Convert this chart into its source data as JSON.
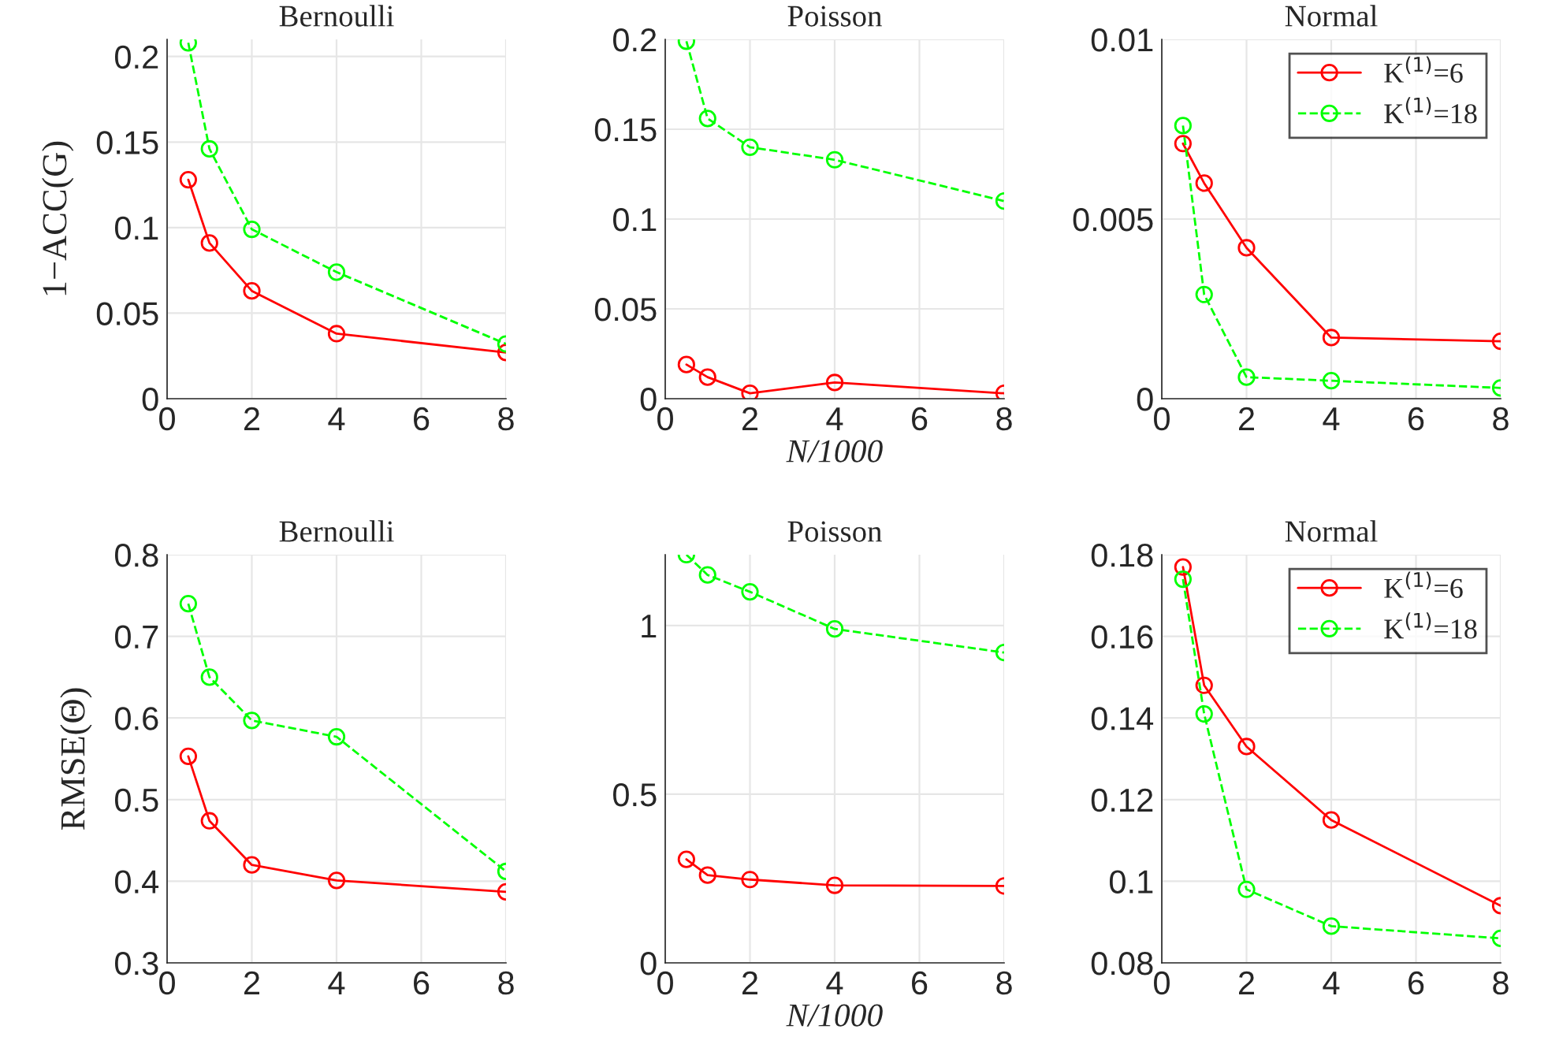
{
  "chart_data": [
    {
      "type": "line",
      "title": "Bernoulli",
      "ylabel": "1−ACC(G)",
      "x": [
        0.5,
        1,
        2,
        4,
        8
      ],
      "xlim": [
        0,
        8
      ],
      "xticks": [
        0,
        2,
        4,
        6,
        8
      ],
      "ylim": [
        0,
        0.21
      ],
      "yticks": [
        0,
        0.05,
        0.1,
        0.15,
        0.2
      ],
      "grid": true,
      "marker": "circle",
      "series": [
        {
          "color": "#ff0000",
          "line_style": "solid",
          "values": [
            0.128,
            0.091,
            0.063,
            0.038,
            0.027
          ]
        },
        {
          "color": "#00ff00",
          "line_style": "dashed",
          "values": [
            0.208,
            0.146,
            0.099,
            0.074,
            0.032
          ]
        }
      ]
    },
    {
      "type": "line",
      "title": "Poisson",
      "xlabel": "N/1000",
      "x": [
        0.5,
        1,
        2,
        4,
        8
      ],
      "xlim": [
        0,
        8
      ],
      "xticks": [
        0,
        2,
        4,
        6,
        8
      ],
      "ylim": [
        0,
        0.2
      ],
      "yticks": [
        0,
        0.05,
        0.1,
        0.15,
        0.2
      ],
      "grid": true,
      "marker": "circle",
      "series": [
        {
          "color": "#ff0000",
          "line_style": "solid",
          "values": [
            0.019,
            0.012,
            0.003,
            0.009,
            0.003
          ]
        },
        {
          "color": "#00ff00",
          "line_style": "dashed",
          "values": [
            0.199,
            0.156,
            0.14,
            0.133,
            0.11
          ]
        }
      ]
    },
    {
      "type": "line",
      "title": "Normal",
      "x": [
        0.5,
        1,
        2,
        4,
        8
      ],
      "xlim": [
        0,
        8
      ],
      "xticks": [
        0,
        2,
        4,
        6,
        8
      ],
      "ylim": [
        0,
        0.01
      ],
      "yticks": [
        0,
        0.005,
        0.01
      ],
      "grid": true,
      "marker": "circle",
      "legend": "top right",
      "series": [
        {
          "name": "K$^{(1)}$=6",
          "color": "#ff0000",
          "line_style": "solid",
          "values": [
            0.0071,
            0.006,
            0.0042,
            0.0017,
            0.0016
          ]
        },
        {
          "name": "K$^{(1)}$=18",
          "color": "#00ff00",
          "line_style": "dashed",
          "values": [
            0.0076,
            0.0029,
            0.0006,
            0.0005,
            0.0003
          ]
        }
      ]
    },
    {
      "type": "line",
      "title": "Bernoulli",
      "ylabel": "RMSE(Θ)",
      "x": [
        0.5,
        1,
        2,
        4,
        8
      ],
      "xlim": [
        0,
        8
      ],
      "xticks": [
        0,
        2,
        4,
        6,
        8
      ],
      "ylim": [
        0.3,
        0.8
      ],
      "yticks": [
        0.3,
        0.4,
        0.5,
        0.6,
        0.7,
        0.8
      ],
      "grid": true,
      "marker": "circle",
      "series": [
        {
          "color": "#ff0000",
          "line_style": "solid",
          "values": [
            0.553,
            0.474,
            0.42,
            0.401,
            0.387
          ]
        },
        {
          "color": "#00ff00",
          "line_style": "dashed",
          "values": [
            0.74,
            0.65,
            0.597,
            0.577,
            0.412
          ]
        }
      ]
    },
    {
      "type": "line",
      "title": "Poisson",
      "xlabel": "N/1000",
      "x": [
        0.5,
        1,
        2,
        4,
        8
      ],
      "xlim": [
        0,
        8
      ],
      "xticks": [
        0,
        2,
        4,
        6,
        8
      ],
      "ylim": [
        0,
        1.21
      ],
      "yticks": [
        0,
        0.5,
        1
      ],
      "grid": true,
      "marker": "circle",
      "series": [
        {
          "color": "#ff0000",
          "line_style": "solid",
          "values": [
            0.307,
            0.26,
            0.247,
            0.23,
            0.228
          ]
        },
        {
          "color": "#00ff00",
          "line_style": "dashed",
          "values": [
            1.21,
            1.15,
            1.1,
            0.99,
            0.92
          ]
        }
      ]
    },
    {
      "type": "line",
      "title": "Normal",
      "x": [
        0.5,
        1,
        2,
        4,
        8
      ],
      "xlim": [
        0,
        8
      ],
      "xticks": [
        0,
        2,
        4,
        6,
        8
      ],
      "ylim": [
        0.08,
        0.18
      ],
      "yticks": [
        0.08,
        0.1,
        0.12,
        0.14,
        0.16,
        0.18
      ],
      "grid": true,
      "marker": "circle",
      "legend": "top right",
      "series": [
        {
          "name": "K$^{(1)}$=6",
          "color": "#ff0000",
          "line_style": "solid",
          "values": [
            0.177,
            0.148,
            0.133,
            0.115,
            0.094
          ]
        },
        {
          "name": "K$^{(1)}$=18",
          "color": "#00ff00",
          "line_style": "dashed",
          "values": [
            0.174,
            0.141,
            0.098,
            0.089,
            0.086
          ]
        }
      ]
    }
  ]
}
